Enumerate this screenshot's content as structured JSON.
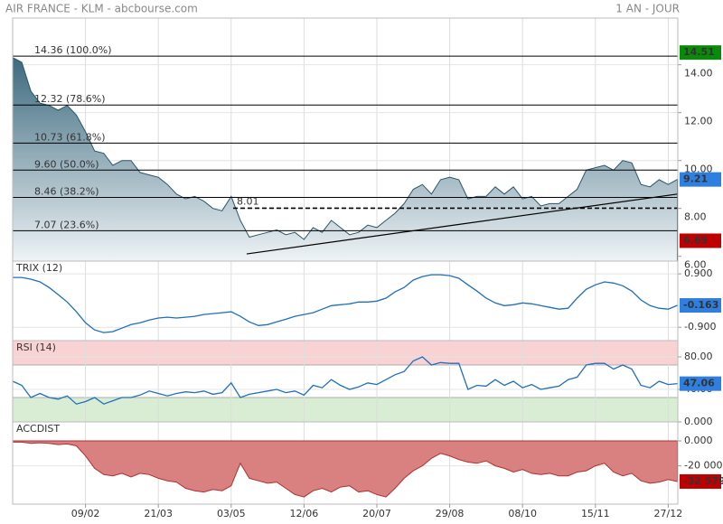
{
  "header": {
    "title": "AIR FRANCE - KLM - abcbourse.com",
    "period": "1 AN - JOUR"
  },
  "chart_data": [
    {
      "type": "area",
      "color": "#2d5566",
      "categories": [
        null,
        null,
        null,
        null,
        null,
        null,
        null,
        null,
        "09/02",
        null,
        null,
        null,
        null,
        null,
        null,
        null,
        "21/03",
        null,
        null,
        null,
        null,
        null,
        null,
        null,
        "03/05",
        null,
        null,
        null,
        null,
        null,
        null,
        null,
        "12/06",
        null,
        null,
        null,
        null,
        null,
        null,
        null,
        "20/07",
        null,
        null,
        null,
        null,
        null,
        null,
        null,
        "29/08",
        null,
        null,
        null,
        null,
        null,
        null,
        null,
        "08/10",
        null,
        null,
        null,
        null,
        null,
        null,
        null,
        "15/11",
        null,
        null,
        null,
        null,
        null,
        null,
        null,
        "27/12",
        null
      ],
      "values": [
        14.3,
        14.1,
        12.9,
        12.4,
        12.3,
        12.1,
        12.3,
        11.9,
        11.2,
        10.4,
        10.3,
        9.8,
        10.0,
        10.0,
        9.5,
        9.4,
        9.3,
        9.0,
        8.6,
        8.4,
        8.5,
        8.3,
        8.0,
        7.9,
        8.5,
        7.5,
        6.8,
        6.9,
        7.0,
        7.1,
        6.9,
        7.0,
        6.7,
        7.2,
        7.0,
        7.5,
        7.2,
        6.9,
        7.0,
        7.3,
        7.2,
        7.5,
        7.8,
        8.2,
        8.8,
        9.0,
        8.6,
        9.2,
        9.3,
        9.2,
        8.4,
        8.5,
        8.5,
        8.9,
        8.6,
        8.9,
        8.4,
        8.5,
        8.1,
        8.2,
        8.2,
        8.5,
        8.8,
        9.6,
        9.7,
        9.8,
        9.6,
        10.0,
        9.9,
        9.0,
        8.9,
        9.2,
        9.0,
        9.21
      ],
      "ylim": [
        5.8,
        15.95
      ],
      "yticks": [
        {
          "value": 6,
          "label": "6.00"
        },
        {
          "value": 8,
          "label": "8.00"
        },
        {
          "value": 10,
          "label": "10.00"
        },
        {
          "value": 12,
          "label": "12.00"
        },
        {
          "value": 14,
          "label": "14.00"
        }
      ],
      "levels": [
        {
          "value": 14.36,
          "label": "14.36  (100.0%)"
        },
        {
          "value": 12.32,
          "label": "12.32  (78.6%)"
        },
        {
          "value": 10.73,
          "label": "10.73  (61.8%)"
        },
        {
          "value": 9.6,
          "label": "9.60  (50.0%)"
        },
        {
          "value": 8.46,
          "label": "8.46  (38.2%)"
        },
        {
          "value": 7.07,
          "label": "7.07  (23.6%)"
        }
      ],
      "support": {
        "value": 8.01,
        "label": "8.01"
      },
      "trendline": [
        [
          25.7,
          6.1
        ],
        [
          73,
          8.6
        ]
      ],
      "markers": [
        {
          "value": 14.51,
          "color": "#0a8a0a"
        },
        {
          "value": 9.21,
          "color": "#2f7fe0"
        },
        {
          "value": 6.65,
          "color": "#c00000"
        }
      ],
      "grid": true
    },
    {
      "type": "line",
      "title": "TRIX (12)",
      "color": "#1f6fbf",
      "values": [
        0.78,
        0.78,
        0.72,
        0.63,
        0.44,
        0.2,
        -0.05,
        -0.38,
        -0.75,
        -0.99,
        -1.08,
        -1.05,
        -0.93,
        -0.81,
        -0.75,
        -0.66,
        -0.59,
        -0.56,
        -0.59,
        -0.56,
        -0.53,
        -0.47,
        -0.44,
        -0.41,
        -0.38,
        -0.53,
        -0.72,
        -0.84,
        -0.81,
        -0.72,
        -0.63,
        -0.53,
        -0.47,
        -0.41,
        -0.29,
        -0.17,
        -0.14,
        -0.11,
        -0.05,
        -0.05,
        -0.02,
        0.08,
        0.29,
        0.44,
        0.69,
        0.81,
        0.87,
        0.87,
        0.84,
        0.75,
        0.53,
        0.32,
        0.08,
        -0.08,
        -0.17,
        -0.14,
        -0.08,
        -0.11,
        -0.17,
        -0.23,
        -0.29,
        -0.26,
        0.08,
        0.38,
        0.53,
        0.63,
        0.59,
        0.5,
        0.32,
        0.02,
        -0.17,
        -0.26,
        -0.29,
        -0.163
      ],
      "ylim": [
        -1.35,
        1.33
      ],
      "yticks": [
        {
          "value": 0.9,
          "label": "0.900"
        },
        {
          "value": -0.9,
          "label": "-0.900"
        }
      ],
      "marker_color": "#2f7fe0",
      "grid": true
    },
    {
      "type": "line",
      "title": "RSI (14)",
      "color": "#1f6fbf",
      "values": [
        50,
        45,
        30,
        35,
        30,
        28,
        32,
        22,
        25,
        30,
        22,
        26,
        30,
        30,
        33,
        38,
        35,
        32,
        35,
        37,
        36,
        38,
        34,
        36,
        48,
        30,
        34,
        36,
        38,
        40,
        36,
        38,
        33,
        45,
        42,
        52,
        45,
        40,
        43,
        48,
        46,
        52,
        58,
        62,
        75,
        80,
        70,
        73,
        72,
        72,
        40,
        45,
        44,
        52,
        45,
        50,
        42,
        46,
        40,
        42,
        44,
        52,
        55,
        70,
        72,
        72,
        65,
        70,
        65,
        45,
        42,
        50,
        46,
        47.06
      ],
      "ylim": [
        0,
        100
      ],
      "yticks": [
        {
          "value": 80,
          "label": "80.00"
        },
        {
          "value": 40,
          "label": "40.00"
        },
        {
          "value": 0,
          "label": "0.000"
        }
      ],
      "bands": [
        {
          "from": 70,
          "to": 100,
          "color": "#f9d3d3"
        },
        {
          "from": 0,
          "to": 30,
          "color": "#d8edd4"
        }
      ],
      "marker_color": "#2f7fe0",
      "grid": true
    },
    {
      "type": "area",
      "title": "ACCDIST",
      "color": "#b03030",
      "fill": "#d98080",
      "values": [
        -1000,
        -1000,
        -2000,
        -1500,
        -2000,
        -3000,
        -2500,
        -4000,
        -12000,
        -22000,
        -27000,
        -28000,
        -26000,
        -29000,
        -26000,
        -27000,
        -30000,
        -32000,
        -33000,
        -38000,
        -40000,
        -41000,
        -39000,
        -40000,
        -36000,
        -18000,
        -30000,
        -32000,
        -34000,
        -33000,
        -38000,
        -43000,
        -45000,
        -40000,
        -38000,
        -41000,
        -37000,
        -36000,
        -41000,
        -40000,
        -43000,
        -45000,
        -38000,
        -30000,
        -24000,
        -20000,
        -14000,
        -10000,
        -12000,
        -15000,
        -17000,
        -18000,
        -16000,
        -20000,
        -22000,
        -25000,
        -23000,
        -26000,
        -27000,
        -26000,
        -28000,
        -28000,
        -25000,
        -24000,
        -20000,
        -18000,
        -25000,
        -28000,
        -26000,
        -32000,
        -34000,
        -33000,
        -31000,
        -32579
      ],
      "last_label": "-32 579",
      "ylim": [
        -50700,
        15200
      ],
      "yticks": [
        {
          "value": 0,
          "label": "0.000"
        },
        {
          "value": -20000,
          "label": "-20 000"
        }
      ],
      "marker_color": "#c00000",
      "grid": true
    }
  ]
}
